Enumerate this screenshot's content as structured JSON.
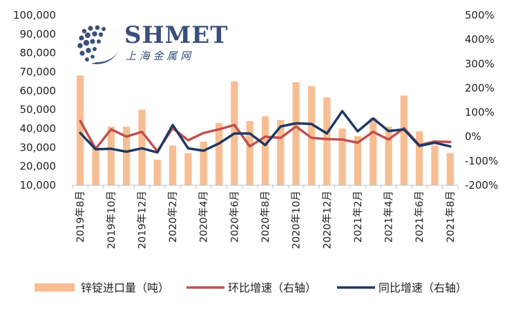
{
  "watermark": {
    "brand": "SHMET",
    "subtitle": "上 海 金 属 网"
  },
  "legend": {
    "bar_label": "锌锭进口量（吨）",
    "mom_label": "环比增速（右轴）",
    "yoy_label": "同比增速（右轴）"
  },
  "chart_data": {
    "type": "bar+line",
    "categories": [
      "2019年8月",
      "2019年9月",
      "2019年10月",
      "2019年11月",
      "2019年12月",
      "2020年1月",
      "2020年2月",
      "2020年3月",
      "2020年4月",
      "2020年5月",
      "2020年6月",
      "2020年7月",
      "2020年8月",
      "2020年9月",
      "2020年10月",
      "2020年11月",
      "2020年12月",
      "2021年1月",
      "2021年2月",
      "2021年3月",
      "2021年4月",
      "2021年5月",
      "2021年6月",
      "2021年7月",
      "2021年8月"
    ],
    "x_tick_labels": [
      "2019年8月",
      "2019年10月",
      "2019年12月",
      "2020年2月",
      "2020年4月",
      "2020年6月",
      "2020年8月",
      "2020年10月",
      "2020年12月",
      "2021年2月",
      "2021年4月",
      "2021年6月",
      "2021年8月"
    ],
    "series": [
      {
        "name": "锌锭进口量（吨）",
        "type": "bar",
        "axis": "left",
        "color": "#f7be94",
        "values": [
          68000,
          30000,
          41000,
          41000,
          50000,
          23500,
          31000,
          27000,
          33000,
          43000,
          65000,
          44000,
          46500,
          44500,
          64500,
          62500,
          56500,
          40000,
          36000,
          45500,
          41000,
          57500,
          38500,
          31000,
          27000
        ]
      },
      {
        "name": "环比增速（右轴）",
        "type": "line",
        "axis": "right",
        "color": "#c0504d",
        "values": [
          65,
          -50,
          30,
          0,
          20,
          -60,
          35,
          -15,
          15,
          30,
          48,
          -40,
          0,
          -5,
          42,
          -5,
          -10,
          -12,
          -25,
          20,
          -12,
          35,
          -35,
          -20,
          -22
        ]
      },
      {
        "name": "同比增速（右轴）",
        "type": "line",
        "axis": "right",
        "color": "#1f3864",
        "values": [
          15,
          -52,
          -50,
          -62,
          -48,
          -65,
          48,
          -48,
          -58,
          -28,
          13,
          13,
          -35,
          42,
          55,
          52,
          13,
          105,
          22,
          75,
          23,
          30,
          -38,
          -25,
          -40
        ]
      }
    ],
    "y_left": {
      "min": 10000,
      "max": 100000,
      "ticks": [
        "10,000",
        "20,000",
        "30,000",
        "40,000",
        "50,000",
        "60,000",
        "70,000",
        "80,000",
        "90,000",
        "100,000"
      ]
    },
    "y_right": {
      "min": -200,
      "max": 500,
      "ticks": [
        "-200%",
        "-100%",
        "0%",
        "100%",
        "200%",
        "300%",
        "400%",
        "500%"
      ]
    },
    "grid": false,
    "legend_position": "bottom"
  }
}
